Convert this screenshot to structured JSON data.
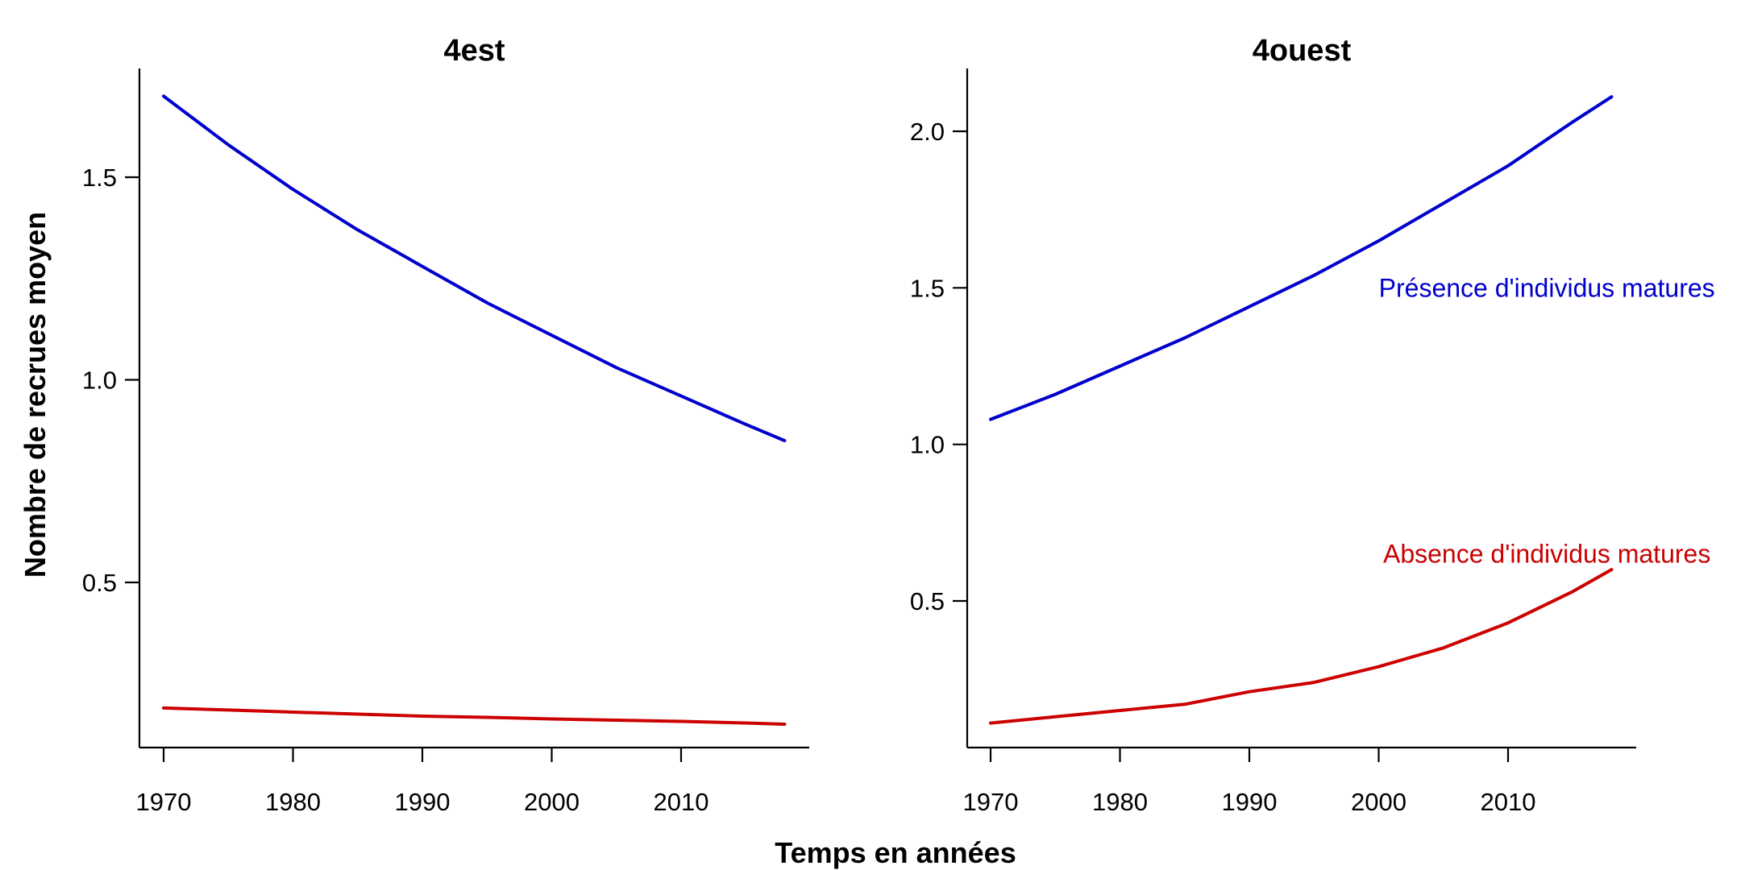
{
  "figure": {
    "xlabel": "Temps en années",
    "ylabel": "Nombre de recrues moyen"
  },
  "colors": {
    "presence": "#0000CC",
    "absence": "#CC0000",
    "axis": "#000000"
  },
  "chart_data": [
    {
      "type": "line",
      "title": "4est",
      "xlabel": "Temps en années",
      "ylabel": "Nombre de recrues moyen",
      "xlim": [
        1968,
        2020
      ],
      "ylim": [
        0.1,
        1.75
      ],
      "x_ticks": [
        1970,
        1980,
        1990,
        2000,
        2010
      ],
      "y_ticks": [
        0.5,
        1.0,
        1.5
      ],
      "y_tick_labels": [
        "0.5",
        "1.0",
        "1.5"
      ],
      "grid": false,
      "legend": "none",
      "x": [
        1970,
        1975,
        1980,
        1985,
        1990,
        1995,
        2000,
        2005,
        2010,
        2015,
        2018
      ],
      "series": [
        {
          "color": "#0000CC",
          "values": [
            1.7,
            1.58,
            1.47,
            1.37,
            1.28,
            1.19,
            1.11,
            1.03,
            0.96,
            0.89,
            0.85
          ]
        },
        {
          "color": "#CC0000",
          "values": [
            0.19,
            0.185,
            0.18,
            0.175,
            0.17,
            0.167,
            0.163,
            0.16,
            0.157,
            0.153,
            0.15
          ]
        }
      ],
      "annotations": []
    },
    {
      "type": "line",
      "title": "4ouest",
      "xlim": [
        1968,
        2020
      ],
      "ylim": [
        0.1,
        2.2
      ],
      "x_ticks": [
        1970,
        1980,
        1990,
        2000,
        2010
      ],
      "y_ticks": [
        0.5,
        1.0,
        1.5,
        2.0
      ],
      "y_tick_labels": [
        "0.5",
        "1.0",
        "1.5",
        "2.0"
      ],
      "grid": false,
      "legend": "none",
      "x": [
        1970,
        1975,
        1980,
        1985,
        1990,
        1995,
        2000,
        2005,
        2010,
        2015,
        2018
      ],
      "series": [
        {
          "color": "#0000CC",
          "values": [
            1.08,
            1.16,
            1.25,
            1.34,
            1.44,
            1.54,
            1.65,
            1.77,
            1.89,
            2.03,
            2.11
          ]
        },
        {
          "color": "#CC0000",
          "values": [
            0.11,
            0.13,
            0.15,
            0.17,
            0.21,
            0.24,
            0.29,
            0.35,
            0.43,
            0.53,
            0.6
          ]
        }
      ],
      "annotations": [
        {
          "text": "Présence d'individus matures",
          "color": "#0000CC",
          "x": 2013,
          "y": 1.5
        },
        {
          "text": "Absence d'individus matures",
          "color": "#CC0000",
          "x": 2013,
          "y": 0.65
        }
      ]
    }
  ]
}
